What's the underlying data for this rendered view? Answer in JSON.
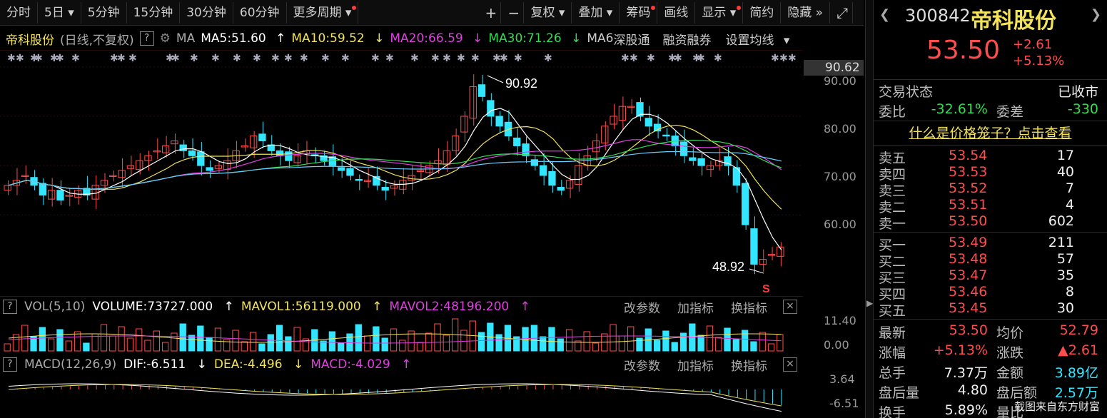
{
  "toolbar": {
    "periods": [
      "分时",
      "5日",
      "5分钟",
      "15分钟",
      "30分钟",
      "60分钟",
      "更多周期"
    ],
    "tools": [
      "复权",
      "叠加",
      "筹码",
      "画线",
      "显示",
      "简约",
      "隐藏"
    ],
    "plus_icon": "plus-icon",
    "minus_icon": "minus-icon",
    "fullscreen_icon": "fullscreen-icon"
  },
  "ma_legend": {
    "stock": "帝科股份",
    "mode": "(日线,不复权)",
    "help": "?",
    "ma_label": "MA",
    "ma5": "MA5:51.60",
    "ma10": "MA10:59.52",
    "ma20": "MA20:66.59",
    "ma30": "MA30:71.26",
    "ma60": "MA6",
    "shgt": "深股通",
    "rzrq": "融资融券",
    "set_ma": "设置均线"
  },
  "price_axis": {
    "highlight": "90.62",
    "ticks": [
      "90.00",
      "80.00",
      "70.00",
      "60.00"
    ]
  },
  "annotations": {
    "high": "90.92",
    "low": "48.92",
    "s_mark": "S"
  },
  "vol": {
    "label": "VOL(5,10)",
    "volume": "VOLUME:73727.000",
    "mavol1": "MAVOL1:56119.000",
    "mavol2": "MAVOL2:48196.200",
    "ticks": [
      "11.40",
      "0.00"
    ]
  },
  "macd": {
    "label": "MACD(12,26,9)",
    "dif": "DIF:-6.511",
    "dea": "DEA:-4.496",
    "macd": "MACD:-4.029",
    "ticks": [
      "3.64",
      "-6.51"
    ]
  },
  "sub_actions": {
    "params": "改参数",
    "add": "加指标",
    "switch": "换指标",
    "close": "×"
  },
  "colors": {
    "up": "#ff4d4d",
    "down": "#33e6ff",
    "ma5": "#ffffff",
    "ma10": "#f2e35a",
    "ma20": "#e040e0",
    "ma30": "#33dd55",
    "ma60": "#66ccff"
  },
  "chart_data": {
    "type": "candlestick",
    "ylim": [
      45,
      92
    ],
    "close": [
      66,
      67,
      68,
      66,
      64,
      65,
      63,
      64,
      65,
      64,
      66,
      67,
      68,
      69,
      70,
      71,
      72,
      73,
      74,
      75,
      73,
      72,
      70,
      69,
      70,
      71,
      73,
      74,
      76,
      75,
      73,
      72,
      71,
      72,
      73,
      72,
      71,
      70,
      69,
      68,
      67,
      67,
      66,
      65,
      66,
      67,
      68,
      69,
      70,
      71,
      73,
      76,
      80,
      86,
      84,
      80,
      78,
      76,
      74,
      72,
      70,
      68,
      66,
      65,
      67,
      70,
      72,
      75,
      78,
      80,
      82,
      82,
      80,
      78,
      77,
      76,
      74,
      72,
      71,
      70,
      70,
      71,
      70,
      66,
      58,
      50,
      51,
      52,
      53.5
    ]
  },
  "quote": {
    "code": "300842",
    "name": "帝科股份",
    "price": "53.50",
    "change": "+2.61",
    "change_pct": "+5.13%",
    "trade_status_label": "交易状态",
    "trade_status": "已收市",
    "wb_label": "委比",
    "wb": "-32.61%",
    "wc_label": "委差",
    "wc": "-330",
    "cage_link": "什么是价格笼子？点击查看"
  },
  "asks": [
    {
      "label": "卖五",
      "price": "53.54",
      "vol": "17"
    },
    {
      "label": "卖四",
      "price": "53.53",
      "vol": "40"
    },
    {
      "label": "卖三",
      "price": "53.52",
      "vol": "7"
    },
    {
      "label": "卖二",
      "price": "53.51",
      "vol": "4"
    },
    {
      "label": "卖一",
      "price": "53.50",
      "vol": "602"
    }
  ],
  "bids": [
    {
      "label": "买一",
      "price": "53.49",
      "vol": "211"
    },
    {
      "label": "买二",
      "price": "53.48",
      "vol": "57"
    },
    {
      "label": "买三",
      "price": "53.47",
      "vol": "35"
    },
    {
      "label": "买四",
      "price": "53.46",
      "vol": "8"
    },
    {
      "label": "买五",
      "price": "53.45",
      "vol": "30"
    }
  ],
  "stats": [
    {
      "k1": "最新",
      "v1": "53.50",
      "k2": "均价",
      "v2": "52.79"
    },
    {
      "k1": "涨幅",
      "v1": "+5.13%",
      "k2": "涨跌",
      "v2": "▲2.61"
    },
    {
      "k1": "总手",
      "v1": "7.37万",
      "k2": "金额",
      "v2": "3.89亿"
    },
    {
      "k1": "盘后量",
      "v1": "4.80",
      "k2": "盘后额",
      "v2": "2.57万"
    },
    {
      "k1": "换手",
      "v1": "5.89%",
      "k2": "量比",
      "v2": ""
    }
  ],
  "watermark": "截图来自东方财富"
}
